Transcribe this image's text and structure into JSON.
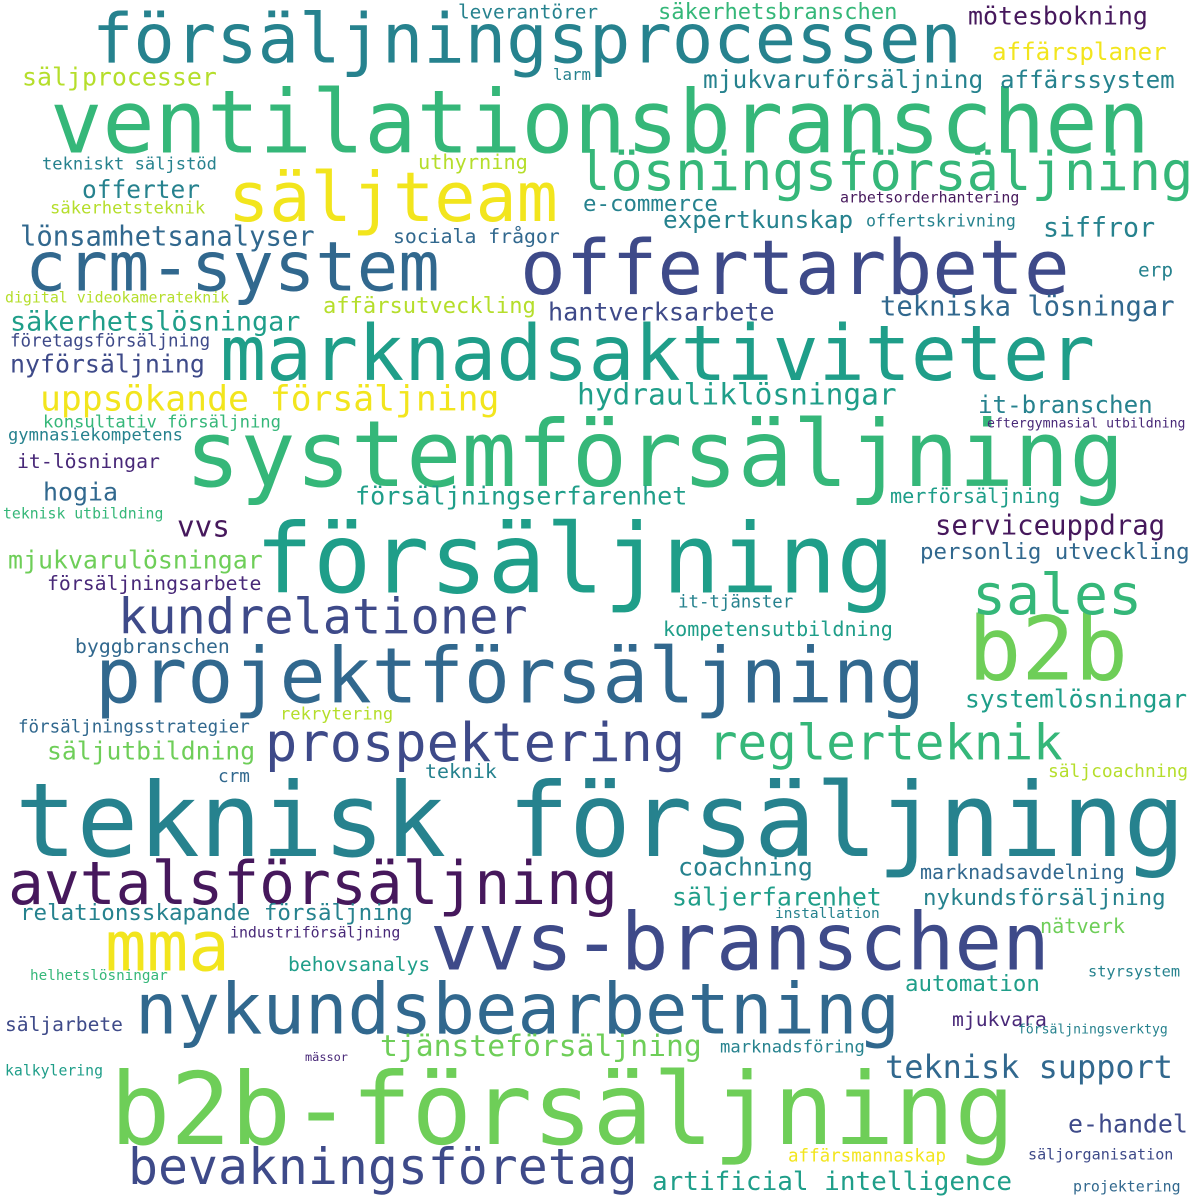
{
  "palette": {
    "darkpurple": "#46185c",
    "purple": "#482878",
    "indigo": "#3e4a89",
    "blue": "#31688e",
    "teal": "#26828e",
    "tealgreen": "#1f9e89",
    "green": "#35b779",
    "lightgreen": "#6ece58",
    "lime": "#b5de2b",
    "yellow": "#f2e51d"
  },
  "words": [
    {
      "text": "försäljningsprocessen",
      "color": "teal"
    },
    {
      "text": "ventilationsbranschen",
      "color": "green"
    },
    {
      "text": "säljteam",
      "color": "yellow"
    },
    {
      "text": "lösningsförsäljning",
      "color": "green"
    },
    {
      "text": "crm-system",
      "color": "blue"
    },
    {
      "text": "offertarbete",
      "color": "indigo"
    },
    {
      "text": "marknadsaktiviteter",
      "color": "tealgreen"
    },
    {
      "text": "systemförsäljning",
      "color": "green"
    },
    {
      "text": "försäljning",
      "color": "tealgreen"
    },
    {
      "text": "b2b",
      "color": "lightgreen"
    },
    {
      "text": "projektförsäljning",
      "color": "blue"
    },
    {
      "text": "kundrelationer",
      "color": "indigo"
    },
    {
      "text": "sales",
      "color": "green"
    },
    {
      "text": "prospektering",
      "color": "indigo"
    },
    {
      "text": "reglerteknik",
      "color": "green"
    },
    {
      "text": "teknisk försäljning",
      "color": "teal"
    },
    {
      "text": "avtalsförsäljning",
      "color": "darkpurple"
    },
    {
      "text": "mma",
      "color": "yellow"
    },
    {
      "text": "vvs-branschen",
      "color": "indigo"
    },
    {
      "text": "nykundsbearbetning",
      "color": "blue"
    },
    {
      "text": "b2b-försäljning",
      "color": "lightgreen"
    },
    {
      "text": "bevakningsföretag",
      "color": "indigo"
    },
    {
      "text": "uppsökande försäljning",
      "color": "yellow"
    },
    {
      "text": "hydrauliklösningar",
      "color": "tealgreen"
    },
    {
      "text": "tekniska lösningar",
      "color": "blue"
    },
    {
      "text": "leverantörer",
      "color": "teal"
    },
    {
      "text": "säkerhetsbranschen",
      "color": "green"
    },
    {
      "text": "mötesbokning",
      "color": "darkpurple"
    },
    {
      "text": "affärsplaner",
      "color": "yellow"
    },
    {
      "text": "säljprocesser",
      "color": "lime"
    },
    {
      "text": "larm",
      "color": "teal"
    },
    {
      "text": "mjukvaruförsäljning",
      "color": "teal"
    },
    {
      "text": "affärssystem",
      "color": "teal"
    },
    {
      "text": "tekniskt säljstöd",
      "color": "teal"
    },
    {
      "text": "uthyrning",
      "color": "lime"
    },
    {
      "text": "offerter",
      "color": "teal"
    },
    {
      "text": "e-commerce",
      "color": "teal"
    },
    {
      "text": "arbetsorderhantering",
      "color": "darkpurple"
    },
    {
      "text": "säkerhetsteknik",
      "color": "lime"
    },
    {
      "text": "expertkunskap",
      "color": "teal"
    },
    {
      "text": "offertskrivning",
      "color": "teal"
    },
    {
      "text": "lönsamhetsanalyser",
      "color": "blue"
    },
    {
      "text": "sociala frågor",
      "color": "blue"
    },
    {
      "text": "siffror",
      "color": "teal"
    },
    {
      "text": "erp",
      "color": "teal"
    },
    {
      "text": "digital videokamerateknik",
      "color": "lime"
    },
    {
      "text": "affärsutveckling",
      "color": "lime"
    },
    {
      "text": "hantverksarbete",
      "color": "indigo"
    },
    {
      "text": "säkerhetslösningar",
      "color": "tealgreen"
    },
    {
      "text": "företagsförsäljning",
      "color": "indigo"
    },
    {
      "text": "nyförsäljning",
      "color": "indigo"
    },
    {
      "text": "konsultativ försäljning",
      "color": "green"
    },
    {
      "text": "it-branschen",
      "color": "teal"
    },
    {
      "text": "gymnasiekompetens",
      "color": "teal"
    },
    {
      "text": "eftergymnasial utbildning",
      "color": "purple"
    },
    {
      "text": "it-lösningar",
      "color": "purple"
    },
    {
      "text": "hogia",
      "color": "blue"
    },
    {
      "text": "försäljningserfarenhet",
      "color": "tealgreen"
    },
    {
      "text": "merförsäljning",
      "color": "tealgreen"
    },
    {
      "text": "teknisk utbildning",
      "color": "green"
    },
    {
      "text": "vvs",
      "color": "darkpurple"
    },
    {
      "text": "serviceuppdrag",
      "color": "darkpurple"
    },
    {
      "text": "personlig utveckling",
      "color": "blue"
    },
    {
      "text": "mjukvarulösningar",
      "color": "lightgreen"
    },
    {
      "text": "försäljningsarbete",
      "color": "purple"
    },
    {
      "text": "it-tjänster",
      "color": "teal"
    },
    {
      "text": "kompetensutbildning",
      "color": "tealgreen"
    },
    {
      "text": "byggbranschen",
      "color": "blue"
    },
    {
      "text": "systemlösningar",
      "color": "tealgreen"
    },
    {
      "text": "försäljningsstrategier",
      "color": "blue"
    },
    {
      "text": "rekrytering",
      "color": "lime"
    },
    {
      "text": "säljutbildning",
      "color": "lightgreen"
    },
    {
      "text": "crm",
      "color": "blue"
    },
    {
      "text": "teknik",
      "color": "teal"
    },
    {
      "text": "säljcoachning",
      "color": "lime"
    },
    {
      "text": "coachning",
      "color": "teal"
    },
    {
      "text": "marknadsavdelning",
      "color": "blue"
    },
    {
      "text": "säljerfarenhet",
      "color": "tealgreen"
    },
    {
      "text": "nykundsförsäljning",
      "color": "teal"
    },
    {
      "text": "relationsskapande försäljning",
      "color": "teal"
    },
    {
      "text": "installation",
      "color": "teal"
    },
    {
      "text": "industriförsäljning",
      "color": "purple"
    },
    {
      "text": "nätverk",
      "color": "lightgreen"
    },
    {
      "text": "helhetslösningar",
      "color": "green"
    },
    {
      "text": "behovsanalys",
      "color": "tealgreen"
    },
    {
      "text": "styrsystem",
      "color": "teal"
    },
    {
      "text": "automation",
      "color": "tealgreen"
    },
    {
      "text": "mjukvara",
      "color": "purple"
    },
    {
      "text": "säljarbete",
      "color": "indigo"
    },
    {
      "text": "försäljningsverktyg",
      "color": "teal"
    },
    {
      "text": "mässor",
      "color": "purple"
    },
    {
      "text": "tjänsteförsäljning",
      "color": "lightgreen"
    },
    {
      "text": "marknadsföring",
      "color": "teal"
    },
    {
      "text": "teknisk support",
      "color": "blue"
    },
    {
      "text": "kalkylering",
      "color": "tealgreen"
    },
    {
      "text": "e-handel",
      "color": "indigo"
    },
    {
      "text": "artificial intelligence",
      "color": "tealgreen"
    },
    {
      "text": "affärsmannaskap",
      "color": "yellow"
    },
    {
      "text": "säljorganisation",
      "color": "indigo"
    },
    {
      "text": "projektering",
      "color": "blue"
    }
  ]
}
